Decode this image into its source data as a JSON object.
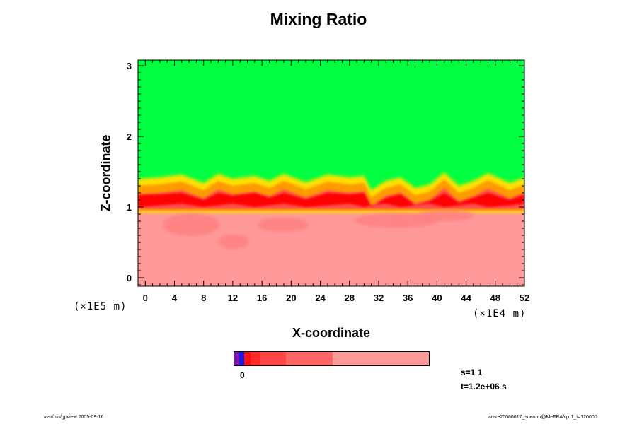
{
  "chart_data": {
    "type": "heatmap",
    "title": "Mixing Ratio",
    "xlabel": "X-coordinate",
    "ylabel": "Z-coordinate",
    "x_multiplier": "(×1E4 m)",
    "y_multiplier": "(×1E5 m)",
    "xlim": [
      -1,
      52
    ],
    "ylim": [
      -0.12,
      3.08
    ],
    "x_ticks": [
      0,
      4,
      8,
      12,
      16,
      20,
      24,
      28,
      32,
      36,
      40,
      44,
      48,
      52
    ],
    "y_ticks": [
      0,
      1,
      2,
      3
    ],
    "layers": [
      {
        "name": "upper",
        "color": "#00ff40",
        "z_range": [
          1.4,
          3.08
        ]
      },
      {
        "name": "transition",
        "color": "#ffff00",
        "z_range": [
          1.2,
          1.4
        ]
      },
      {
        "name": "interface",
        "color": "#ff0000",
        "z_range": [
          1.0,
          1.2
        ]
      },
      {
        "name": "lower",
        "color": "#ff9999",
        "z_range": [
          -0.12,
          1.0
        ]
      }
    ],
    "interface_top_z": [
      {
        "x": -1,
        "z": 1.38
      },
      {
        "x": 2,
        "z": 1.4
      },
      {
        "x": 5,
        "z": 1.44
      },
      {
        "x": 8,
        "z": 1.32
      },
      {
        "x": 10,
        "z": 1.45
      },
      {
        "x": 12,
        "z": 1.38
      },
      {
        "x": 15,
        "z": 1.42
      },
      {
        "x": 17,
        "z": 1.35
      },
      {
        "x": 19,
        "z": 1.45
      },
      {
        "x": 22,
        "z": 1.33
      },
      {
        "x": 25,
        "z": 1.44
      },
      {
        "x": 28,
        "z": 1.4
      },
      {
        "x": 30,
        "z": 1.42
      },
      {
        "x": 31,
        "z": 1.22
      },
      {
        "x": 33,
        "z": 1.35
      },
      {
        "x": 35,
        "z": 1.4
      },
      {
        "x": 37,
        "z": 1.25
      },
      {
        "x": 39,
        "z": 1.3
      },
      {
        "x": 41,
        "z": 1.47
      },
      {
        "x": 43,
        "z": 1.28
      },
      {
        "x": 45,
        "z": 1.35
      },
      {
        "x": 47,
        "z": 1.46
      },
      {
        "x": 50,
        "z": 1.32
      },
      {
        "x": 52,
        "z": 1.4
      }
    ],
    "colorbar": {
      "tick_label": "0",
      "segments": [
        {
          "color": "#7b12b8",
          "fraction": 0.025
        },
        {
          "color": "#1a1ae0",
          "fraction": 0.025
        },
        {
          "color": "#ff1010",
          "fraction": 0.035
        },
        {
          "color": "#ff2a2a",
          "fraction": 0.05
        },
        {
          "color": "#ff4646",
          "fraction": 0.13
        },
        {
          "color": "#ff6666",
          "fraction": 0.24
        },
        {
          "color": "#ff9a9a",
          "fraction": 0.495
        }
      ]
    }
  },
  "info": {
    "s": "s=1 1",
    "t": "t=1.2e+06 s"
  },
  "footer": {
    "left": "/usr/bin/gpview 2005-09-16",
    "right": "arare20080617_sneono@MeFRA/q.c1_t=120000"
  }
}
